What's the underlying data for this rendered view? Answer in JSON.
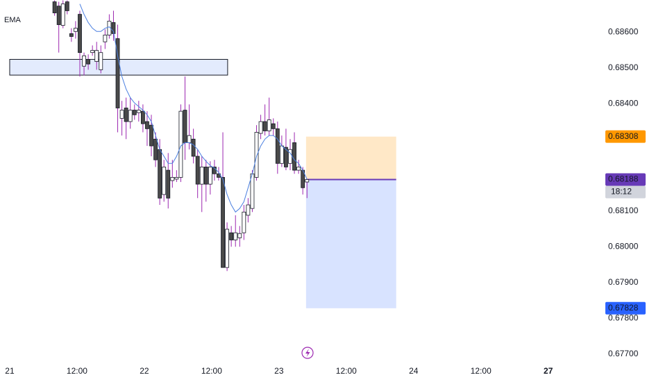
{
  "chart_data": {
    "type": "candlestick",
    "xlim": [
      -1.73,
      104.7
    ],
    "ylim": [
      0.6768,
      0.6869
    ],
    "xticks": [
      {
        "value": 0,
        "label": "21"
      },
      {
        "value": 12,
        "label": "12:00"
      },
      {
        "value": 24,
        "label": "22"
      },
      {
        "value": 36,
        "label": "12:00"
      },
      {
        "value": 48,
        "label": "23"
      },
      {
        "value": 60,
        "label": "12:00"
      },
      {
        "value": 72,
        "label": "24"
      },
      {
        "value": 84,
        "label": "12:00"
      },
      {
        "value": 96,
        "label": "27"
      }
    ],
    "yticks": [
      {
        "value": 0.686,
        "label": "0.68600"
      },
      {
        "value": 0.685,
        "label": "0.68500"
      },
      {
        "value": 0.684,
        "label": "0.68400"
      },
      {
        "value": 0.681,
        "label": "0.68100"
      },
      {
        "value": 0.68,
        "label": "0.68000"
      },
      {
        "value": 0.679,
        "label": "0.67900"
      },
      {
        "value": 0.678,
        "label": "0.67800"
      },
      {
        "value": 0.677,
        "label": "0.67700"
      }
    ],
    "up_color": "#ffffff",
    "down_color": "#4a4a4a",
    "wick_color": "#9c27b0",
    "x": [
      8,
      8.75,
      9.5,
      10.25,
      11,
      11.75,
      12.5,
      13.25,
      14,
      14.75,
      15.5,
      16.25,
      17,
      17.75,
      18.5,
      19.25,
      20,
      20.75,
      21.5,
      22.25,
      23,
      23.75,
      24.5,
      25.25,
      26,
      26.75,
      27.5,
      28.25,
      29,
      29.75,
      30.5,
      31.25,
      32,
      32.75,
      33.5,
      34.25,
      35,
      35.75,
      36.5,
      37.25,
      38,
      38.75,
      39.5,
      40.25,
      41,
      41.75,
      42.5,
      43.25,
      44,
      44.75,
      45.5,
      46.25,
      47,
      47.75,
      48.5,
      49.25,
      50,
      50.75,
      51.5,
      52.25,
      53
    ],
    "open": [
      0.68685,
      0.68673,
      0.68619,
      0.68685,
      0.68596,
      0.68602,
      0.6865,
      0.68505,
      0.68524,
      0.68543,
      0.68518,
      0.68495,
      0.68573,
      0.68592,
      0.68627,
      0.68582,
      0.68359,
      0.68388,
      0.6835,
      0.68382,
      0.68375,
      0.68379,
      0.6835,
      0.6834,
      0.68301,
      0.68272,
      0.68146,
      0.68214,
      0.68185,
      0.68189,
      0.68194,
      0.68382,
      0.68291,
      0.68301,
      0.68253,
      0.68175,
      0.68223,
      0.68175,
      0.68223,
      0.68204,
      0.68194,
      0.67942,
      0.68039,
      0.68019,
      0.68025,
      0.68039,
      0.68088,
      0.68107,
      0.68194,
      0.68317,
      0.6835,
      0.68324,
      0.68344,
      0.6833,
      0.68233,
      0.68278,
      0.68233,
      0.68291,
      0.68214,
      0.68214,
      0.68181
    ],
    "high": [
      0.68689,
      0.68685,
      0.68689,
      0.68689,
      0.68611,
      0.68631,
      0.6866,
      0.68543,
      0.68538,
      0.68563,
      0.68573,
      0.68563,
      0.68608,
      0.6865,
      0.6866,
      0.68621,
      0.68408,
      0.68417,
      0.68417,
      0.68398,
      0.68408,
      0.68398,
      0.68379,
      0.68369,
      0.6832,
      0.68301,
      0.68243,
      0.68262,
      0.68243,
      0.68214,
      0.68398,
      0.68476,
      0.68398,
      0.6833,
      0.68272,
      0.68253,
      0.68243,
      0.68239,
      0.68243,
      0.68223,
      0.6832,
      0.68068,
      0.68058,
      0.68088,
      0.68058,
      0.68117,
      0.68136,
      0.68214,
      0.6834,
      0.68369,
      0.68398,
      0.68417,
      0.68359,
      0.6835,
      0.68311,
      0.6833,
      0.68301,
      0.6832,
      0.68243,
      0.68223,
      0.68189
    ],
    "low": [
      0.68646,
      0.68543,
      0.68611,
      0.6865,
      0.68573,
      0.68582,
      0.68476,
      0.68479,
      0.68495,
      0.68534,
      0.68495,
      0.68485,
      0.68553,
      0.68582,
      0.68576,
      0.6832,
      0.68311,
      0.68301,
      0.6833,
      0.68355,
      0.6835,
      0.6832,
      0.68282,
      0.68253,
      0.68223,
      0.68117,
      0.68126,
      0.68107,
      0.68165,
      0.68181,
      0.68181,
      0.68243,
      0.68272,
      0.68233,
      0.68136,
      0.68097,
      0.68126,
      0.68146,
      0.68185,
      0.68185,
      0.67942,
      0.67932,
      0.68,
      0.68,
      0.68,
      0.68019,
      0.68068,
      0.68097,
      0.68185,
      0.68301,
      0.68311,
      0.68311,
      0.68311,
      0.68204,
      0.68223,
      0.68214,
      0.68214,
      0.68204,
      0.68204,
      0.68146,
      0.68136
    ],
    "close": [
      0.68654,
      0.68621,
      0.68679,
      0.6866,
      0.68588,
      0.68611,
      0.68543,
      0.68534,
      0.68511,
      0.68549,
      0.68549,
      0.68543,
      0.68592,
      0.68631,
      0.68596,
      0.68388,
      0.68382,
      0.6835,
      0.68382,
      0.68369,
      0.68382,
      0.68344,
      0.6833,
      0.68282,
      0.68243,
      0.68136,
      0.68223,
      0.68136,
      0.68194,
      0.68194,
      0.68379,
      0.68291,
      0.68311,
      0.68253,
      0.68175,
      0.68223,
      0.68175,
      0.68223,
      0.68204,
      0.68194,
      0.67942,
      0.68049,
      0.68019,
      0.68039,
      0.68037,
      0.68097,
      0.68117,
      0.68204,
      0.6832,
      0.6835,
      0.68324,
      0.68355,
      0.6833,
      0.68233,
      0.68282,
      0.68223,
      0.68272,
      0.68214,
      0.68223,
      0.68165,
      0.68188
    ],
    "ema": {
      "name": "EMA",
      "color": "#4a7fe0",
      "values": [
        null,
        null,
        null,
        null,
        null,
        null,
        0.68679,
        0.6865,
        0.68627,
        0.68611,
        0.68602,
        0.68602,
        0.68611,
        0.68615,
        0.68602,
        0.68534,
        0.68476,
        0.68441,
        0.68417,
        0.68402,
        0.68392,
        0.68382,
        0.68369,
        0.6835,
        0.68311,
        0.68272,
        0.68253,
        0.68233,
        0.68233,
        0.68253,
        0.68282,
        0.68291,
        0.68291,
        0.68285,
        0.68272,
        0.68253,
        0.68239,
        0.68227,
        0.6822,
        0.68208,
        0.68189,
        0.68146,
        0.68117,
        0.68097,
        0.68107,
        0.68126,
        0.68165,
        0.68204,
        0.68253,
        0.68282,
        0.68301,
        0.68311,
        0.68311,
        0.68301,
        0.68282,
        0.68272,
        0.68262,
        0.68243,
        0.68233,
        0.68214,
        0.68189
      ]
    },
    "zone": {
      "x": [
        0,
        38.85
      ],
      "y": [
        0.6848,
        0.68524
      ],
      "color": "#e3ebfd"
    },
    "position": {
      "x": [
        52.83,
        68.9
      ],
      "target": {
        "value": 0.68308,
        "label": "0.68308",
        "color": "#ff9800"
      },
      "entry": {
        "value": 0.68188,
        "label": "0.68188",
        "color": "#673ab7"
      },
      "stop": {
        "value": 0.67828,
        "label": "0.67828",
        "color": "#2962ff"
      },
      "countdown": "18:12"
    }
  }
}
